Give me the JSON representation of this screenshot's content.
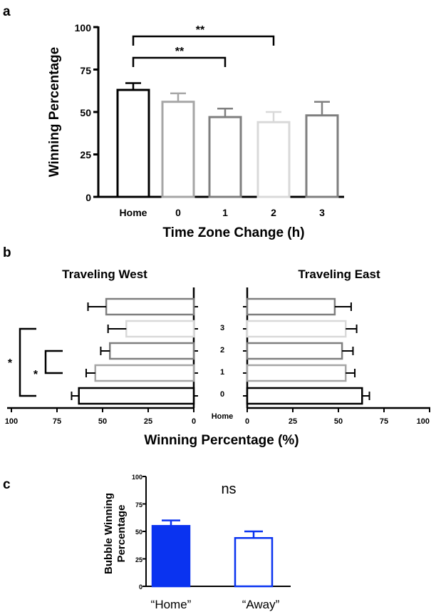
{
  "chart_data": [
    {
      "panel_label": "a",
      "type": "bar",
      "categories": [
        "Home",
        "0",
        "1",
        "2",
        "3"
      ],
      "values": [
        63,
        56,
        47,
        44,
        48
      ],
      "errors": [
        4,
        5,
        5,
        6,
        8
      ],
      "bar_colors": [
        "#000000",
        "#a6a6a6",
        "#7f7f7f",
        "#d9d9d9",
        "#7f7f7f"
      ],
      "xlabel": "Time Zone Change (h)",
      "ylabel": "Winning Percentage",
      "ylim": [
        0,
        100
      ],
      "yticks": [
        "0",
        "25",
        "50",
        "75",
        "100"
      ],
      "significance": [
        {
          "from": "Home",
          "to": "1",
          "label": "**"
        },
        {
          "from": "Home",
          "to": "2",
          "label": "**"
        }
      ]
    },
    {
      "panel_label": "b",
      "type": "bar",
      "orientation": "horizontal",
      "categories": [
        "3",
        "2",
        "1",
        "0",
        "Home"
      ],
      "xlabel": "Winning Percentage (%)",
      "xticks_left": [
        "100",
        "75",
        "50",
        "25",
        "0"
      ],
      "xticks_right": [
        "0",
        "25",
        "50",
        "75",
        "100"
      ],
      "series": [
        {
          "name": "Traveling West",
          "values": [
            48,
            37,
            46,
            54,
            63
          ],
          "errors": [
            10,
            10,
            5,
            5,
            4
          ],
          "colors": [
            "#7f7f7f",
            "#d9d9d9",
            "#7f7f7f",
            "#a6a6a6",
            "#000000"
          ]
        },
        {
          "name": "Traveling East",
          "values": [
            48,
            54,
            52,
            54,
            63
          ],
          "errors": [
            9,
            6,
            6,
            5,
            4
          ],
          "colors": [
            "#7f7f7f",
            "#d9d9d9",
            "#7f7f7f",
            "#a6a6a6",
            "#000000"
          ]
        }
      ],
      "significance": [
        {
          "from": "Home",
          "to": "2",
          "label": "*"
        },
        {
          "from": "0",
          "to": "1",
          "label": "*"
        }
      ]
    },
    {
      "panel_label": "c",
      "type": "bar",
      "categories": [
        "“Home”",
        "“Away”"
      ],
      "values": [
        55,
        44
      ],
      "errors": [
        5,
        6
      ],
      "filled": [
        true,
        false
      ],
      "color": "#0a33f0",
      "ylabel": "Bubble Winning Percentage",
      "ylim": [
        0,
        100
      ],
      "yticks": [
        "0",
        "25",
        "50",
        "75",
        "100"
      ],
      "annotation": "ns"
    }
  ]
}
